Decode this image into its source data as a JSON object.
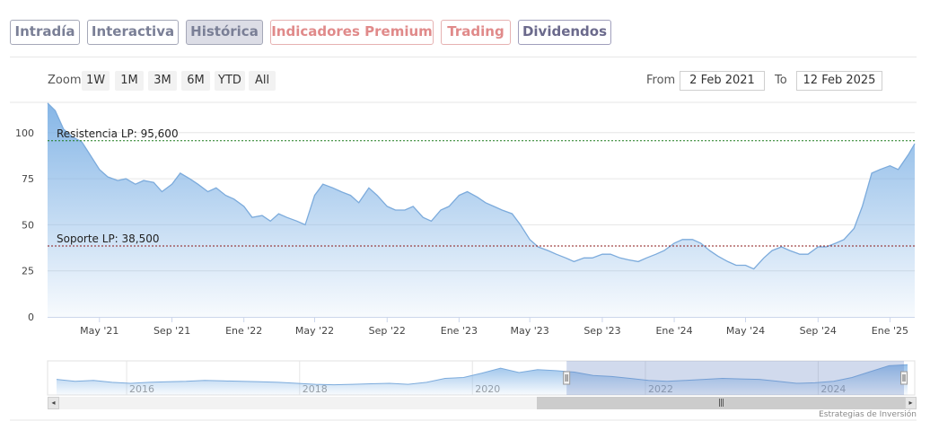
{
  "tabs": [
    {
      "label": "Intradía",
      "style": "gray"
    },
    {
      "label": "Interactiva",
      "style": "gray"
    },
    {
      "label": "Histórica",
      "style": "active"
    },
    {
      "label": "Indicadores Premium",
      "style": "red"
    },
    {
      "label": "Trading",
      "style": "red"
    },
    {
      "label": "Dividendos",
      "style": "purple"
    }
  ],
  "zoom": {
    "label": "Zoom",
    "buttons": [
      "1W",
      "1M",
      "3M",
      "6M",
      "YTD",
      "All"
    ]
  },
  "range": {
    "from_label": "From",
    "from_value": "2 Feb 2021",
    "to_label": "To",
    "to_value": "12 Feb 2025"
  },
  "credit": "Estrategias de Inversión",
  "chart_data": {
    "type": "area",
    "title": "",
    "xlabel": "",
    "ylabel": "",
    "ylim": [
      0,
      115
    ],
    "yticks": [
      0,
      25,
      50,
      75,
      100
    ],
    "x_ticks": [
      "May '21",
      "Sep '21",
      "Ene '22",
      "May '22",
      "Sep '22",
      "Ene '23",
      "May '23",
      "Sep '23",
      "Ene '24",
      "May '24",
      "Sep '24",
      "Ene '25"
    ],
    "x_tick_dates": [
      "2021-05-01",
      "2021-09-01",
      "2022-01-01",
      "2022-05-01",
      "2022-09-01",
      "2023-01-01",
      "2023-05-01",
      "2023-09-01",
      "2024-01-01",
      "2024-05-01",
      "2024-09-01",
      "2025-01-01"
    ],
    "x_range": [
      "2021-02-02",
      "2025-02-12"
    ],
    "series": [
      {
        "dates": [
          "2021-02-02",
          "2021-02-15",
          "2021-03-01",
          "2021-03-15",
          "2021-04-01",
          "2021-04-15",
          "2021-05-01",
          "2021-05-15",
          "2021-06-01",
          "2021-06-15",
          "2021-07-01",
          "2021-07-15",
          "2021-08-01",
          "2021-08-15",
          "2021-09-01",
          "2021-09-15",
          "2021-10-01",
          "2021-10-15",
          "2021-11-01",
          "2021-11-15",
          "2021-12-01",
          "2021-12-15",
          "2022-01-01",
          "2022-01-15",
          "2022-02-01",
          "2022-02-15",
          "2022-03-01",
          "2022-03-15",
          "2022-04-01",
          "2022-04-15",
          "2022-05-01",
          "2022-05-15",
          "2022-06-01",
          "2022-06-15",
          "2022-07-01",
          "2022-07-15",
          "2022-08-01",
          "2022-08-15",
          "2022-09-01",
          "2022-09-15",
          "2022-10-01",
          "2022-10-15",
          "2022-11-01",
          "2022-11-15",
          "2022-12-01",
          "2022-12-15",
          "2023-01-01",
          "2023-01-15",
          "2023-02-01",
          "2023-02-15",
          "2023-03-01",
          "2023-03-15",
          "2023-04-01",
          "2023-04-15",
          "2023-05-01",
          "2023-05-15",
          "2023-06-01",
          "2023-06-15",
          "2023-07-01",
          "2023-07-15",
          "2023-08-01",
          "2023-08-15",
          "2023-09-01",
          "2023-09-15",
          "2023-10-01",
          "2023-10-15",
          "2023-11-01",
          "2023-11-15",
          "2023-12-01",
          "2023-12-15",
          "2024-01-01",
          "2024-01-15",
          "2024-02-01",
          "2024-02-15",
          "2024-03-01",
          "2024-03-15",
          "2024-04-01",
          "2024-04-15",
          "2024-05-01",
          "2024-05-15",
          "2024-06-01",
          "2024-06-15",
          "2024-07-01",
          "2024-07-15",
          "2024-08-01",
          "2024-08-15",
          "2024-09-01",
          "2024-09-15",
          "2024-10-01",
          "2024-10-15",
          "2024-11-01",
          "2024-11-15",
          "2024-12-01",
          "2024-12-15",
          "2025-01-01",
          "2025-01-15",
          "2025-02-01",
          "2025-02-12"
        ],
        "values": [
          116,
          112,
          102,
          98,
          95,
          88,
          80,
          76,
          74,
          75,
          72,
          74,
          73,
          68,
          72,
          78,
          75,
          72,
          68,
          70,
          66,
          64,
          60,
          54,
          55,
          52,
          56,
          54,
          52,
          50,
          66,
          72,
          70,
          68,
          66,
          62,
          70,
          66,
          60,
          58,
          58,
          60,
          54,
          52,
          58,
          60,
          66,
          68,
          65,
          62,
          60,
          58,
          56,
          50,
          42,
          38,
          36,
          34,
          32,
          30,
          32,
          32,
          34,
          34,
          32,
          31,
          30,
          32,
          34,
          36,
          40,
          42,
          42,
          40,
          36,
          33,
          30,
          28,
          28,
          26,
          32,
          36,
          38,
          36,
          34,
          34,
          38,
          38,
          40,
          42,
          48,
          60,
          78,
          80,
          82,
          80,
          88,
          94
        ]
      }
    ],
    "annotations": [
      {
        "label": "Resistencia LP: 95,600",
        "value": 95.6,
        "color": "#1a7a1a"
      },
      {
        "label": "Soporte LP: 38,500",
        "value": 38.5,
        "color": "#8b1a1a"
      }
    ],
    "navigator": {
      "x_labels": [
        "2016",
        "2018",
        "2020",
        "2022",
        "2024"
      ],
      "x_label_dates": [
        "2016-01-01",
        "2018-01-01",
        "2020-01-01",
        "2022-01-01",
        "2024-01-01"
      ],
      "x_range": [
        "2015-02-01",
        "2025-02-12"
      ],
      "values": [
        32,
        28,
        30,
        26,
        24,
        26,
        27,
        28,
        30,
        29,
        28,
        27,
        26,
        24,
        22,
        21,
        22,
        23,
        24,
        22,
        26,
        34,
        36,
        45,
        55,
        46,
        52,
        50,
        47,
        40,
        38,
        34,
        30,
        28,
        30,
        32,
        34,
        33,
        32,
        28,
        24,
        25,
        28,
        36,
        48,
        60,
        62
      ]
    },
    "grid": true,
    "legend": "none"
  }
}
